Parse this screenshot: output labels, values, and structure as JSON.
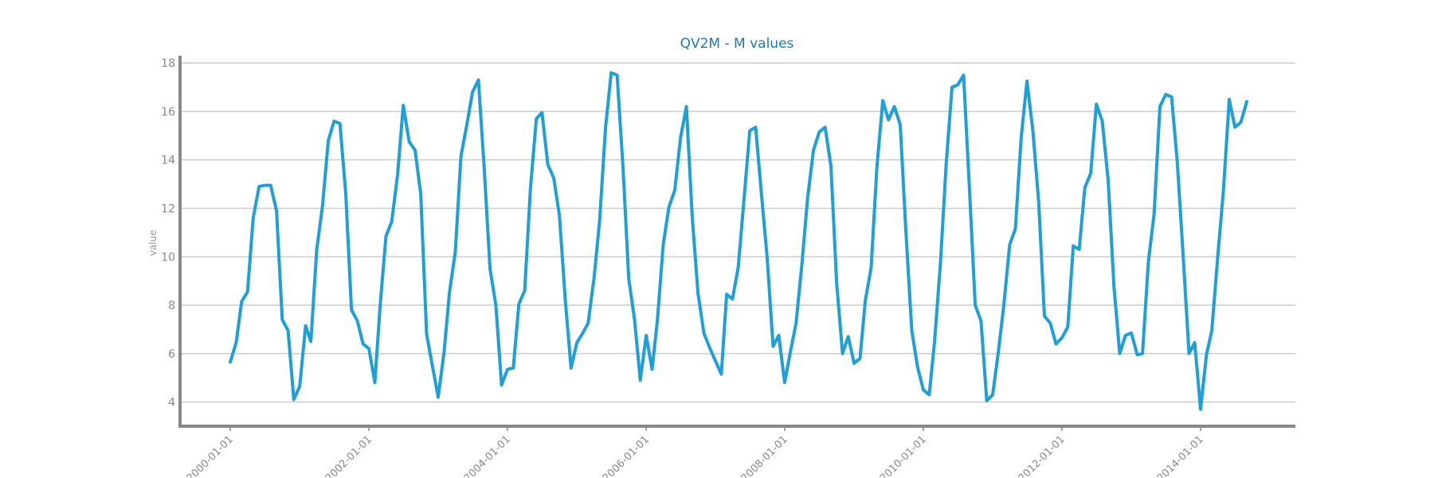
{
  "chart_data": {
    "type": "line",
    "title": "QV2M - M values",
    "xlabel": "",
    "ylabel": "value",
    "x_axis": "date",
    "ylim": [
      3,
      18.3
    ],
    "yticks": [
      4,
      6,
      8,
      10,
      12,
      14,
      16,
      18
    ],
    "xticks": [
      "2000-01-01",
      "2002-01-01",
      "2004-01-01",
      "2006-01-01",
      "2008-01-01",
      "2010-01-01",
      "2012-01-01",
      "2014-01-01"
    ],
    "grid": "horizontal",
    "colors": {
      "line": "#1f9fd8",
      "title": "#1f77b4",
      "axis": "#888888",
      "grid": "#cccccc"
    },
    "series": [
      {
        "start": "2000-01",
        "frequency": "monthly",
        "values": [
          5.65,
          6.45,
          8.15,
          8.55,
          11.6,
          12.9,
          12.95,
          12.95,
          11.9,
          7.4,
          6.95,
          4.1,
          4.65,
          7.15,
          6.5,
          10.3,
          12.1,
          14.8,
          15.6,
          15.5,
          12.6,
          7.8,
          7.35,
          6.4,
          6.2,
          4.8,
          8.0,
          10.85,
          11.45,
          13.4,
          16.25,
          14.75,
          14.4,
          12.6,
          6.8,
          5.5,
          4.2,
          6.05,
          8.5,
          10.2,
          14.15,
          15.45,
          16.8,
          17.3,
          13.6,
          9.5,
          8.0,
          4.7,
          5.35,
          5.4,
          8.05,
          8.6,
          12.8,
          15.7,
          15.95,
          13.8,
          13.25,
          11.7,
          8.2,
          5.4,
          6.45,
          6.85,
          7.25,
          9.1,
          11.5,
          15.35,
          17.6,
          17.5,
          13.7,
          9.1,
          7.4,
          4.9,
          6.75,
          5.35,
          7.35,
          10.5,
          12.05,
          12.75,
          14.9,
          16.2,
          11.65,
          8.5,
          6.85,
          6.25,
          5.7,
          5.15,
          8.45,
          8.25,
          9.55,
          12.4,
          15.2,
          15.35,
          12.55,
          9.95,
          6.3,
          6.75,
          4.8,
          6.1,
          7.25,
          9.7,
          12.45,
          14.4,
          15.15,
          15.35,
          13.75,
          8.9,
          6.0,
          6.7,
          5.6,
          5.8,
          8.2,
          9.55,
          13.7,
          16.45,
          15.65,
          16.2,
          15.45,
          11.05,
          6.95,
          5.45,
          4.5,
          4.3,
          6.5,
          9.75,
          13.8,
          17.0,
          17.1,
          17.5,
          12.8,
          8.0,
          7.35,
          4.05,
          4.3,
          6.1,
          8.0,
          10.5,
          11.15,
          14.95,
          17.25,
          15.2,
          12.25,
          7.55,
          7.25,
          6.4,
          6.65,
          7.1,
          10.45,
          10.3,
          12.85,
          13.45,
          16.3,
          15.6,
          13.15,
          8.8,
          6.0,
          6.75,
          6.85,
          5.95,
          6.0,
          9.8,
          11.75,
          16.2,
          16.7,
          16.6,
          13.85,
          10.05,
          6.0,
          6.45,
          3.7,
          5.95,
          6.95,
          9.95,
          12.7,
          16.5,
          15.35,
          15.55,
          16.4
        ]
      }
    ]
  }
}
